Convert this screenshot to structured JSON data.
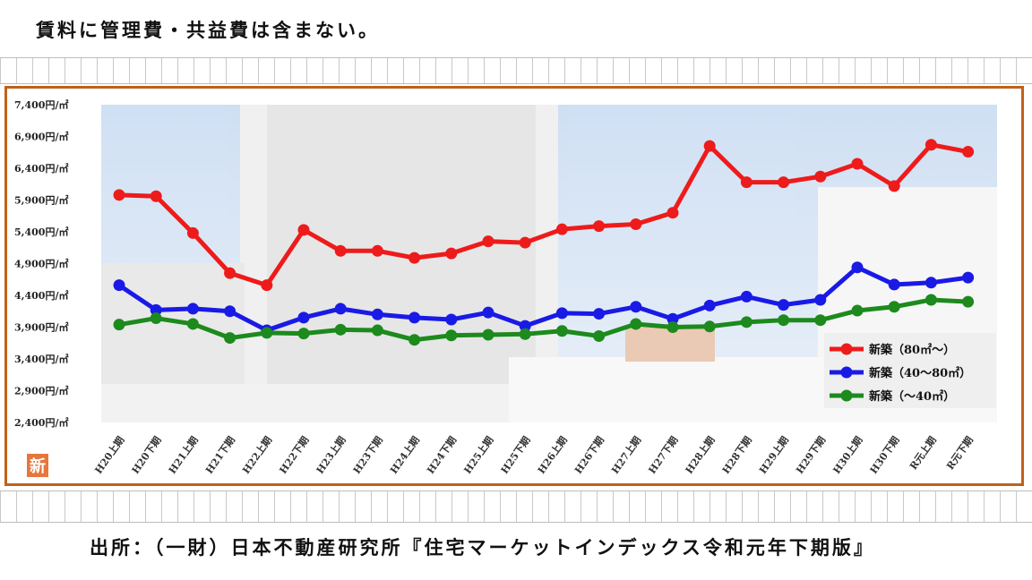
{
  "note_text": "賃料に管理費・共益費は含まない。",
  "source_text": "出所：（一財）日本不動産研究所『住宅マーケットインデックス令和元年下期版』",
  "logo_char": "新",
  "colors": {
    "frame": "#c0611a",
    "red": "#ee1b1b",
    "blue": "#1a1ae6",
    "green": "#1c8a1c",
    "logo": "#e8763c"
  },
  "chart_data": {
    "type": "line",
    "title": "",
    "xlabel": "",
    "ylabel": "",
    "ylim": [
      2400,
      7400
    ],
    "yticks": [
      {
        "value": 7400,
        "label": "7,400円/㎡"
      },
      {
        "value": 6900,
        "label": "6,900円/㎡"
      },
      {
        "value": 6400,
        "label": "6,400円/㎡"
      },
      {
        "value": 5900,
        "label": "5,900円/㎡"
      },
      {
        "value": 5400,
        "label": "5,400円/㎡"
      },
      {
        "value": 4900,
        "label": "4,900円/㎡"
      },
      {
        "value": 4400,
        "label": "4,400円/㎡"
      },
      {
        "value": 3900,
        "label": "3,900円/㎡"
      },
      {
        "value": 3400,
        "label": "3,400円/㎡"
      },
      {
        "value": 2900,
        "label": "2,900円/㎡"
      },
      {
        "value": 2400,
        "label": "2,400円/㎡"
      }
    ],
    "categories": [
      "H20上期",
      "H20下期",
      "H21上期",
      "H21下期",
      "H22上期",
      "H22下期",
      "H23上期",
      "H23下期",
      "H24上期",
      "H24下期",
      "H25上期",
      "H25下期",
      "H26上期",
      "H26下期",
      "H27上期",
      "H27下期",
      "H28上期",
      "H28下期",
      "H29上期",
      "H29下期",
      "H30上期",
      "H30下期",
      "R元上期",
      "R元下期"
    ],
    "legend_position": "bottom-right",
    "grid": false,
    "series": [
      {
        "name": "新築（80㎡～）",
        "color": "#ee1b1b",
        "values": [
          5980,
          5960,
          5380,
          4750,
          4560,
          5430,
          5100,
          5100,
          4990,
          5060,
          5250,
          5230,
          5440,
          5490,
          5520,
          5700,
          6750,
          6180,
          6180,
          6270,
          6470,
          6120,
          6770,
          6660
        ]
      },
      {
        "name": "新築（40～80㎡）",
        "color": "#1a1ae6",
        "values": [
          4560,
          4170,
          4190,
          4150,
          3850,
          4050,
          4190,
          4100,
          4050,
          4020,
          4130,
          3920,
          4120,
          4110,
          4220,
          4030,
          4240,
          4380,
          4250,
          4330,
          4840,
          4570,
          4600,
          4680
        ]
      },
      {
        "name": "新築（～40㎡）",
        "color": "#1c8a1c",
        "values": [
          3940,
          4040,
          3950,
          3730,
          3810,
          3800,
          3860,
          3850,
          3700,
          3770,
          3780,
          3790,
          3840,
          3760,
          3950,
          3900,
          3910,
          3980,
          4010,
          4010,
          4160,
          4220,
          4330,
          4300
        ]
      }
    ]
  }
}
